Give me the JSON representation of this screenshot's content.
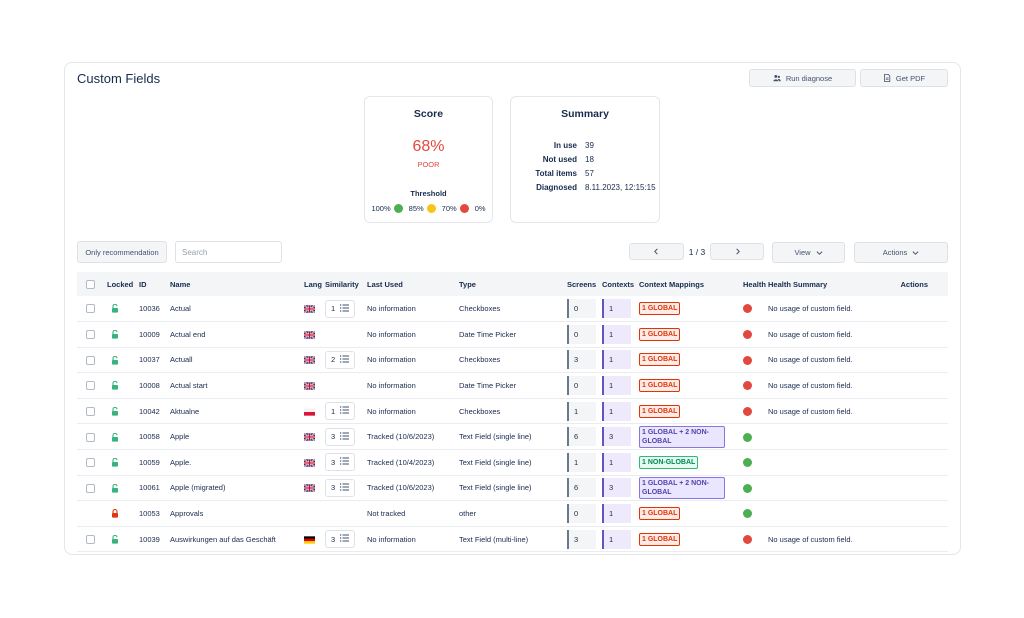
{
  "title": "Custom Fields",
  "buttons": {
    "run_diagnose": "Run diagnose",
    "get_pdf": "Get PDF",
    "only_recommendation": "Only recommendation",
    "view": "View",
    "actions": "Actions"
  },
  "search": {
    "placeholder": "Search"
  },
  "pager": {
    "text": "1 / 3"
  },
  "score": {
    "title": "Score",
    "value": "68%",
    "label": "POOR",
    "threshold_title": "Threshold",
    "thresholds": [
      {
        "label": "100%",
        "color": "#4caf50"
      },
      {
        "label": "85%",
        "color": "#f5c518"
      },
      {
        "label": "70%",
        "color": "#e2483d"
      },
      {
        "label": "0%",
        "color": ""
      }
    ]
  },
  "summary": {
    "title": "Summary",
    "rows": [
      {
        "key": "In use",
        "value": "39"
      },
      {
        "key": "Not used",
        "value": "18"
      },
      {
        "key": "Total items",
        "value": "57"
      },
      {
        "key": "Diagnosed",
        "value": "8.11.2023, 12:15:15"
      }
    ]
  },
  "colors": {
    "health_red": "#e2483d",
    "health_green": "#4caf50"
  },
  "table": {
    "headers": {
      "locked": "Locked",
      "id": "ID",
      "name": "Name",
      "lang": "Lang",
      "similarity": "Similarity",
      "last_used": "Last Used",
      "type": "Type",
      "screens": "Screens",
      "contexts": "Contexts",
      "context_mappings": "Context Mappings",
      "health": "Health",
      "health_summary": "Health Summary",
      "actions": "Actions"
    },
    "rows": [
      {
        "checkbox": true,
        "locked": false,
        "id": "10036",
        "name": "Actual",
        "flag": "gb",
        "similarity": "1",
        "last_used": "No information",
        "type": "Checkboxes",
        "screens": "0",
        "contexts": "1",
        "mapping": "1 GLOBAL",
        "mapping_color": "red",
        "health": "red",
        "health_summary": "No usage of custom field."
      },
      {
        "checkbox": true,
        "locked": false,
        "id": "10009",
        "name": "Actual end",
        "flag": "gb",
        "similarity": "",
        "last_used": "No information",
        "type": "Date Time Picker",
        "screens": "0",
        "contexts": "1",
        "mapping": "1 GLOBAL",
        "mapping_color": "red",
        "health": "red",
        "health_summary": "No usage of custom field."
      },
      {
        "checkbox": true,
        "locked": false,
        "id": "10037",
        "name": "Actuall",
        "flag": "gb",
        "similarity": "2",
        "last_used": "No information",
        "type": "Checkboxes",
        "screens": "3",
        "contexts": "1",
        "mapping": "1 GLOBAL",
        "mapping_color": "red",
        "health": "red",
        "health_summary": "No usage of custom field."
      },
      {
        "checkbox": true,
        "locked": false,
        "id": "10008",
        "name": "Actual start",
        "flag": "gb",
        "similarity": "",
        "last_used": "No information",
        "type": "Date Time Picker",
        "screens": "0",
        "contexts": "1",
        "mapping": "1 GLOBAL",
        "mapping_color": "red",
        "health": "red",
        "health_summary": "No usage of custom field."
      },
      {
        "checkbox": true,
        "locked": false,
        "id": "10042",
        "name": "Aktualne",
        "flag": "pl",
        "similarity": "1",
        "last_used": "No information",
        "type": "Checkboxes",
        "screens": "1",
        "contexts": "1",
        "mapping": "1 GLOBAL",
        "mapping_color": "red",
        "health": "red",
        "health_summary": "No usage of custom field."
      },
      {
        "checkbox": true,
        "locked": false,
        "id": "10058",
        "name": "Apple",
        "flag": "gb",
        "similarity": "3",
        "last_used": "Tracked (10/6/2023)",
        "type": "Text Field (single line)",
        "screens": "6",
        "contexts": "3",
        "mapping": "1 GLOBAL + 2 NON-GLOBAL",
        "mapping_color": "purple",
        "health": "green",
        "health_summary": ""
      },
      {
        "checkbox": true,
        "locked": false,
        "id": "10059",
        "name": "Apple.",
        "flag": "gb",
        "similarity": "3",
        "last_used": "Tracked (10/4/2023)",
        "type": "Text Field (single line)",
        "screens": "1",
        "contexts": "1",
        "mapping": "1 NON-GLOBAL",
        "mapping_color": "green",
        "health": "green",
        "health_summary": ""
      },
      {
        "checkbox": true,
        "locked": false,
        "id": "10061",
        "name": "Apple (migrated)",
        "flag": "gb",
        "similarity": "3",
        "last_used": "Tracked (10/6/2023)",
        "type": "Text Field (single line)",
        "screens": "6",
        "contexts": "3",
        "mapping": "1 GLOBAL + 2 NON-GLOBAL",
        "mapping_color": "purple",
        "health": "green",
        "health_summary": ""
      },
      {
        "checkbox": false,
        "locked": true,
        "id": "10053",
        "name": "Approvals",
        "flag": "",
        "similarity": "",
        "last_used": "Not tracked",
        "type": "other",
        "screens": "0",
        "contexts": "1",
        "mapping": "1 GLOBAL",
        "mapping_color": "red",
        "health": "green",
        "health_summary": ""
      },
      {
        "checkbox": true,
        "locked": false,
        "id": "10039",
        "name": "Auswirkungen auf das Geschäft",
        "flag": "de",
        "similarity": "3",
        "last_used": "No information",
        "type": "Text Field (multi-line)",
        "screens": "3",
        "contexts": "1",
        "mapping": "1 GLOBAL",
        "mapping_color": "red",
        "health": "red",
        "health_summary": "No usage of custom field."
      }
    ]
  }
}
